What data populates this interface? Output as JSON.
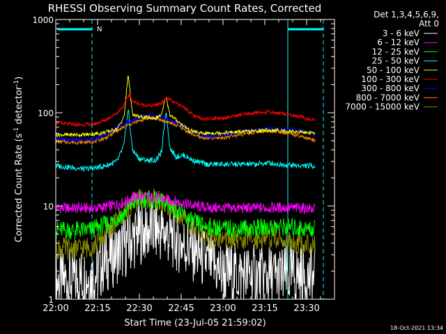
{
  "chart_data": {
    "type": "line",
    "title": "RHESSI Observing Summary Count Rates, Corrected",
    "xlabel": "Start Time (23-Jul-05 21:59:02)",
    "ylabel": "Corrected Count Rate (s⁻¹ detector⁻¹)",
    "ylabel_parts": {
      "prefix": "Corrected Count Rate (s",
      "sup1": "-1",
      "mid": " detector",
      "sup2": "-1",
      "suffix": ")"
    },
    "yscale": "log",
    "ylim": [
      1,
      1000
    ],
    "xlim_minutes": [
      0,
      100
    ],
    "x_ticks": [
      {
        "label": "22:00",
        "min": 0
      },
      {
        "label": "22:15",
        "min": 15
      },
      {
        "label": "22:30",
        "min": 30
      },
      {
        "label": "22:45",
        "min": 45
      },
      {
        "label": "23:00",
        "min": 60
      },
      {
        "label": "23:15",
        "min": 75
      },
      {
        "label": "23:30",
        "min": 90
      }
    ],
    "y_ticks": [
      {
        "label": "1",
        "value": 1
      },
      {
        "label": "10",
        "value": 10
      },
      {
        "label": "100",
        "value": 100
      },
      {
        "label": "1000",
        "value": 1000
      }
    ],
    "legend_header": [
      "Det 1,3,4,5,6,9,",
      "Att 0"
    ],
    "legend_position": "right",
    "night_marker": "N",
    "date_stamp": "18-Oct-2021 13:34",
    "series": [
      {
        "name": "3 - 6 keV",
        "color": "#ffffff",
        "points": [
          [
            0,
            1.5
          ],
          [
            14,
            1.8
          ],
          [
            18,
            2.6
          ],
          [
            24,
            3.5
          ],
          [
            30,
            5.2
          ],
          [
            36,
            5.6
          ],
          [
            42,
            4.6
          ],
          [
            48,
            3.5
          ],
          [
            54,
            2.6
          ],
          [
            60,
            1.9
          ],
          [
            70,
            1.8
          ],
          [
            80,
            1.7
          ],
          [
            88,
            1.8
          ],
          [
            93,
            1.6
          ]
        ]
      },
      {
        "name": "6 - 12 keV",
        "color": "#ff00ff",
        "points": [
          [
            0,
            9.5
          ],
          [
            15,
            9.5
          ],
          [
            20,
            10
          ],
          [
            25,
            11
          ],
          [
            28,
            12.5
          ],
          [
            32,
            12.5
          ],
          [
            38,
            12
          ],
          [
            44,
            11
          ],
          [
            50,
            10
          ],
          [
            56,
            9.5
          ],
          [
            70,
            9.5
          ],
          [
            80,
            9.6
          ],
          [
            88,
            9.5
          ],
          [
            93,
            9.3
          ]
        ]
      },
      {
        "name": "12 - 25 keV",
        "color": "#00ff00",
        "points": [
          [
            0,
            5.5
          ],
          [
            12,
            5.5
          ],
          [
            16,
            6
          ],
          [
            20,
            6.8
          ],
          [
            24,
            8
          ],
          [
            28,
            11
          ],
          [
            32,
            12
          ],
          [
            38,
            11
          ],
          [
            44,
            9
          ],
          [
            48,
            7
          ],
          [
            54,
            6
          ],
          [
            60,
            5.7
          ],
          [
            72,
            5.8
          ],
          [
            82,
            6
          ],
          [
            93,
            5.6
          ]
        ]
      },
      {
        "name": "25 - 50 keV",
        "color": "#00ffff",
        "points": [
          [
            0,
            27
          ],
          [
            10,
            25
          ],
          [
            14,
            25.5
          ],
          [
            18,
            27
          ],
          [
            22,
            30
          ],
          [
            24.5,
            45
          ],
          [
            26,
            110
          ],
          [
            27.5,
            40
          ],
          [
            30,
            32
          ],
          [
            33,
            31
          ],
          [
            36,
            31
          ],
          [
            38,
            38
          ],
          [
            39.5,
            105
          ],
          [
            41,
            42
          ],
          [
            43,
            34
          ],
          [
            46,
            35
          ],
          [
            49,
            31
          ],
          [
            54,
            28
          ],
          [
            62,
            28
          ],
          [
            72,
            28
          ],
          [
            76,
            29
          ],
          [
            80,
            28
          ],
          [
            88,
            27
          ],
          [
            93,
            27
          ]
        ]
      },
      {
        "name": "50 - 100 keV",
        "color": "#ffff00",
        "points": [
          [
            0,
            58
          ],
          [
            10,
            58
          ],
          [
            16,
            60
          ],
          [
            22,
            67
          ],
          [
            24.5,
            90
          ],
          [
            26,
            265
          ],
          [
            27.5,
            95
          ],
          [
            30,
            90
          ],
          [
            36,
            88
          ],
          [
            38,
            95
          ],
          [
            39.5,
            150
          ],
          [
            41,
            95
          ],
          [
            44,
            80
          ],
          [
            48,
            65
          ],
          [
            52,
            60
          ],
          [
            60,
            61
          ],
          [
            70,
            63
          ],
          [
            76,
            65
          ],
          [
            82,
            64
          ],
          [
            88,
            62
          ],
          [
            93,
            60
          ]
        ]
      },
      {
        "name": "100 - 300 keV",
        "color": "#ff0000",
        "points": [
          [
            0,
            78
          ],
          [
            8,
            74
          ],
          [
            14,
            76
          ],
          [
            18,
            84
          ],
          [
            22,
            100
          ],
          [
            24.5,
            120
          ],
          [
            26,
            155
          ],
          [
            28,
            130
          ],
          [
            32,
            120
          ],
          [
            35,
            118
          ],
          [
            38,
            128
          ],
          [
            40,
            145
          ],
          [
            42,
            130
          ],
          [
            46,
            115
          ],
          [
            50,
            90
          ],
          [
            54,
            86
          ],
          [
            60,
            88
          ],
          [
            66,
            94
          ],
          [
            72,
            100
          ],
          [
            76,
            102
          ],
          [
            82,
            98
          ],
          [
            88,
            90
          ],
          [
            93,
            82
          ]
        ]
      },
      {
        "name": "300 - 800 keV",
        "color": "#0000ff",
        "points": [
          [
            0,
            52
          ],
          [
            8,
            51
          ],
          [
            14,
            52
          ],
          [
            18,
            58
          ],
          [
            22,
            70
          ],
          [
            26,
            80
          ],
          [
            30,
            88
          ],
          [
            33,
            95
          ],
          [
            36,
            92
          ],
          [
            40,
            85
          ],
          [
            44,
            76
          ],
          [
            48,
            66
          ],
          [
            52,
            58
          ],
          [
            56,
            56
          ],
          [
            60,
            58
          ],
          [
            66,
            62
          ],
          [
            72,
            66
          ],
          [
            76,
            68
          ],
          [
            80,
            67
          ],
          [
            84,
            66
          ],
          [
            88,
            64
          ],
          [
            93,
            59
          ]
        ]
      },
      {
        "name": "800 - 7000 keV",
        "color": "#ff8800",
        "points": [
          [
            0,
            49
          ],
          [
            8,
            48
          ],
          [
            14,
            49
          ],
          [
            18,
            54
          ],
          [
            22,
            64
          ],
          [
            26,
            74
          ],
          [
            30,
            82
          ],
          [
            33,
            88
          ],
          [
            36,
            86
          ],
          [
            40,
            80
          ],
          [
            44,
            72
          ],
          [
            48,
            61
          ],
          [
            52,
            54
          ],
          [
            56,
            53
          ],
          [
            60,
            54
          ],
          [
            66,
            58
          ],
          [
            72,
            62
          ],
          [
            76,
            64
          ],
          [
            80,
            63
          ],
          [
            84,
            60
          ],
          [
            88,
            55
          ],
          [
            93,
            50
          ]
        ]
      },
      {
        "name": "7000 - 15000 keV",
        "color": "#888800",
        "points": [
          [
            0,
            3.5
          ],
          [
            10,
            3.5
          ],
          [
            14,
            3.8
          ],
          [
            18,
            5
          ],
          [
            22,
            7
          ],
          [
            26,
            9.5
          ],
          [
            30,
            12
          ],
          [
            34,
            12
          ],
          [
            38,
            11
          ],
          [
            42,
            9
          ],
          [
            46,
            7
          ],
          [
            50,
            5.5
          ],
          [
            56,
            4.5
          ],
          [
            62,
            4.3
          ],
          [
            70,
            4.5
          ],
          [
            78,
            4.6
          ],
          [
            84,
            4.2
          ],
          [
            88,
            4
          ],
          [
            93,
            3.7
          ]
        ]
      }
    ]
  }
}
